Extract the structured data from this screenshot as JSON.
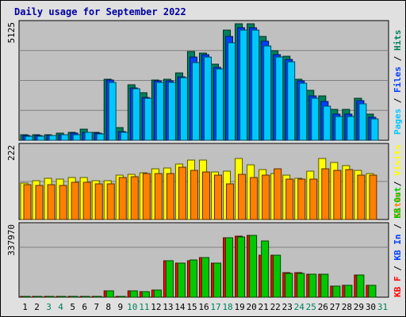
{
  "title": "Daily usage for September 2022",
  "colors": {
    "hits": "#00805c",
    "files": "#0040ff",
    "pages": "#00c8ff",
    "visits": "#ffff00",
    "sites": "#ff8000",
    "kb_in": "#00c800",
    "kb_out": "#ff0000",
    "title": "#0000a0",
    "weekend_label": "#00805c",
    "panel_bg": "#c0c0c0"
  },
  "chart_data": [
    {
      "type": "bar",
      "name": "hits-files-pages",
      "scale_label": "5125",
      "legend": [
        "Pages",
        "/",
        "Files",
        "/",
        "Hits"
      ],
      "categories": [
        "1",
        "2",
        "3",
        "4",
        "5",
        "6",
        "7",
        "8",
        "9",
        "10",
        "11",
        "12",
        "13",
        "14",
        "15",
        "16",
        "17",
        "18",
        "19",
        "20",
        "21",
        "22",
        "23",
        "24",
        "25",
        "26",
        "27",
        "28",
        "29",
        "30",
        "31"
      ],
      "ylim": [
        0,
        5125
      ],
      "series": [
        {
          "name": "Hits",
          "values": [
            260,
            260,
            260,
            300,
            340,
            480,
            340,
            2700,
            550,
            2450,
            2100,
            2650,
            2700,
            2950,
            3900,
            3850,
            3350,
            4850,
            5125,
            5125,
            4550,
            3950,
            3700,
            2700,
            2200,
            1950,
            1350,
            1350,
            1850,
            1150,
            null
          ]
        },
        {
          "name": "Files",
          "values": [
            200,
            200,
            220,
            260,
            300,
            360,
            300,
            2650,
            380,
            2300,
            1900,
            2600,
            2600,
            2800,
            3650,
            3750,
            3200,
            4550,
            4950,
            4950,
            4350,
            3750,
            3550,
            2600,
            1950,
            1700,
            1150,
            1150,
            1750,
            1000,
            null
          ]
        },
        {
          "name": "Pages",
          "values": [
            190,
            190,
            200,
            240,
            260,
            340,
            290,
            2550,
            360,
            2250,
            1850,
            2550,
            2550,
            2750,
            3400,
            3650,
            3150,
            4300,
            4850,
            4850,
            4150,
            3650,
            3450,
            2500,
            1850,
            1500,
            1050,
            1050,
            1600,
            950,
            null
          ]
        }
      ]
    },
    {
      "type": "bar",
      "name": "visits-sites",
      "scale_label": "222",
      "legend": [
        "Sites",
        "/",
        "Visits"
      ],
      "categories": [
        "1",
        "2",
        "3",
        "4",
        "5",
        "6",
        "7",
        "8",
        "9",
        "10",
        "11",
        "12",
        "13",
        "14",
        "15",
        "16",
        "17",
        "18",
        "19",
        "20",
        "21",
        "22",
        "23",
        "24",
        "25",
        "26",
        "27",
        "28",
        "29",
        "30",
        "31"
      ],
      "ylim": [
        0,
        222
      ],
      "series": [
        {
          "name": "Visits",
          "values": [
            110,
            118,
            125,
            122,
            128,
            128,
            118,
            118,
            135,
            138,
            142,
            155,
            158,
            168,
            180,
            180,
            145,
            148,
            186,
            166,
            153,
            140,
            135,
            125,
            148,
            185,
            173,
            165,
            150,
            140,
            null
          ]
        },
        {
          "name": "Sites",
          "values": [
            106,
            103,
            106,
            103,
            113,
            113,
            108,
            108,
            128,
            131,
            140,
            140,
            140,
            159,
            150,
            145,
            135,
            109,
            138,
            129,
            134,
            154,
            122,
            122,
            122,
            155,
            150,
            151,
            136,
            135,
            null
          ]
        }
      ]
    },
    {
      "type": "bar",
      "name": "kbin-kbout",
      "scale_label": "337970",
      "legend": [
        "KB",
        "F",
        "/",
        "KB",
        "In",
        "/",
        "KB",
        "Out"
      ],
      "categories": [
        "1",
        "2",
        "3",
        "4",
        "5",
        "6",
        "7",
        "8",
        "9",
        "10",
        "11",
        "12",
        "13",
        "14",
        "15",
        "16",
        "17",
        "18",
        "19",
        "20",
        "21",
        "22",
        "23",
        "24",
        "25",
        "26",
        "27",
        "28",
        "29",
        "30",
        "31"
      ],
      "ylim": [
        0,
        380000
      ],
      "series": [
        {
          "name": "KB F",
          "values": [
            5000,
            5000,
            5000,
            5000,
            5000,
            5000,
            5000,
            35000,
            6000,
            35000,
            28000,
            40000,
            193000,
            182000,
            193000,
            210000,
            180000,
            318000,
            323000,
            328000,
            225000,
            225000,
            130000,
            130000,
            121000,
            121000,
            60000,
            65000,
            120000,
            65000,
            null
          ]
        },
        {
          "name": "KB In",
          "values": [
            5000,
            5000,
            5000,
            5000,
            5000,
            5000,
            5000,
            35000,
            6000,
            35000,
            28000,
            40000,
            193000,
            180000,
            197000,
            210000,
            180000,
            318000,
            320000,
            328000,
            300000,
            225000,
            127000,
            125000,
            121000,
            121000,
            60000,
            65000,
            120000,
            65000,
            null
          ]
        }
      ]
    }
  ],
  "x_labels": [
    "1",
    "2",
    "3",
    "4",
    "5",
    "6",
    "7",
    "8",
    "9",
    "10",
    "11",
    "12",
    "13",
    "14",
    "15",
    "16",
    "17",
    "18",
    "19",
    "20",
    "21",
    "22",
    "23",
    "24",
    "25",
    "26",
    "27",
    "28",
    "29",
    "30",
    "31"
  ],
  "weekend_days": [
    3,
    4,
    10,
    11,
    17,
    18,
    24,
    25,
    31
  ]
}
